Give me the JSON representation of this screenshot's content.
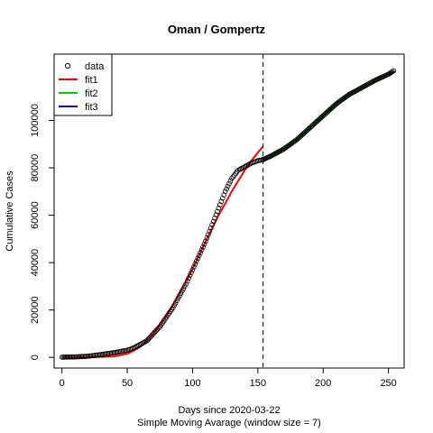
{
  "chart_data": {
    "type": "scatter",
    "title": "Oman / Gompertz",
    "xlabel": "Days since 2020-03-22",
    "subtitle": "Simple Moving Avarage (window size = 7)",
    "ylabel": "Cumulative Cases",
    "xlim": [
      -6,
      262
    ],
    "ylim": [
      -4500,
      128000
    ],
    "x_ticks": [
      0,
      50,
      100,
      150,
      200,
      250
    ],
    "y_ticks": [
      0,
      20000,
      40000,
      60000,
      80000,
      100000
    ],
    "vline_x": 154,
    "legend": {
      "position": "top-left",
      "entries": [
        {
          "label": "data",
          "symbol": "circle",
          "color": "#000000"
        },
        {
          "label": "fit1",
          "symbol": "line",
          "color": "#ff0000"
        },
        {
          "label": "fit2",
          "symbol": "line",
          "color": "#00cd00"
        },
        {
          "label": "fit3",
          "symbol": "line",
          "color": "#0000cd"
        }
      ]
    },
    "series": [
      {
        "name": "data",
        "kind": "points",
        "color": "#000000",
        "points": [
          [
            0,
            100
          ],
          [
            10,
            200
          ],
          [
            20,
            500
          ],
          [
            30,
            1200
          ],
          [
            40,
            2000
          ],
          [
            50,
            3000
          ],
          [
            55,
            4000
          ],
          [
            60,
            5500
          ],
          [
            65,
            7000
          ],
          [
            70,
            10000
          ],
          [
            75,
            13000
          ],
          [
            80,
            17000
          ],
          [
            85,
            21000
          ],
          [
            90,
            26000
          ],
          [
            95,
            31000
          ],
          [
            100,
            37000
          ],
          [
            105,
            43000
          ],
          [
            110,
            49000
          ],
          [
            115,
            56000
          ],
          [
            120,
            63000
          ],
          [
            125,
            70000
          ],
          [
            130,
            75500
          ],
          [
            135,
            79000
          ],
          [
            140,
            80500
          ],
          [
            145,
            82000
          ],
          [
            150,
            83000
          ],
          [
            154,
            83500
          ],
          [
            160,
            85000
          ],
          [
            170,
            88000
          ],
          [
            180,
            92000
          ],
          [
            190,
            97000
          ],
          [
            200,
            102000
          ],
          [
            210,
            107000
          ],
          [
            220,
            111000
          ],
          [
            230,
            114000
          ],
          [
            240,
            117000
          ],
          [
            250,
            119500
          ],
          [
            254,
            121000
          ]
        ]
      },
      {
        "name": "fit1",
        "kind": "line",
        "color": "#ff0000",
        "points": [
          [
            0,
            0
          ],
          [
            20,
            20
          ],
          [
            40,
            400
          ],
          [
            50,
            1500
          ],
          [
            55,
            2800
          ],
          [
            60,
            4500
          ],
          [
            65,
            7000
          ],
          [
            70,
            10000
          ],
          [
            75,
            13500
          ],
          [
            80,
            17500
          ],
          [
            85,
            22000
          ],
          [
            90,
            27000
          ],
          [
            95,
            32000
          ],
          [
            100,
            37500
          ],
          [
            105,
            43000
          ],
          [
            110,
            49000
          ],
          [
            115,
            54500
          ],
          [
            120,
            60000
          ],
          [
            125,
            65000
          ],
          [
            130,
            70000
          ],
          [
            135,
            74500
          ],
          [
            140,
            79000
          ],
          [
            145,
            83000
          ],
          [
            150,
            86500
          ],
          [
            154,
            89000
          ]
        ]
      },
      {
        "name": "fit2",
        "kind": "line",
        "color": "#00cd00",
        "points": [
          [
            154,
            83500
          ],
          [
            160,
            85000
          ],
          [
            170,
            88000
          ],
          [
            180,
            92000
          ],
          [
            190,
            97000
          ],
          [
            200,
            102000
          ],
          [
            210,
            107000
          ],
          [
            220,
            111000
          ],
          [
            230,
            114000
          ],
          [
            240,
            117000
          ],
          [
            250,
            119500
          ],
          [
            254,
            120500
          ]
        ]
      }
    ]
  }
}
